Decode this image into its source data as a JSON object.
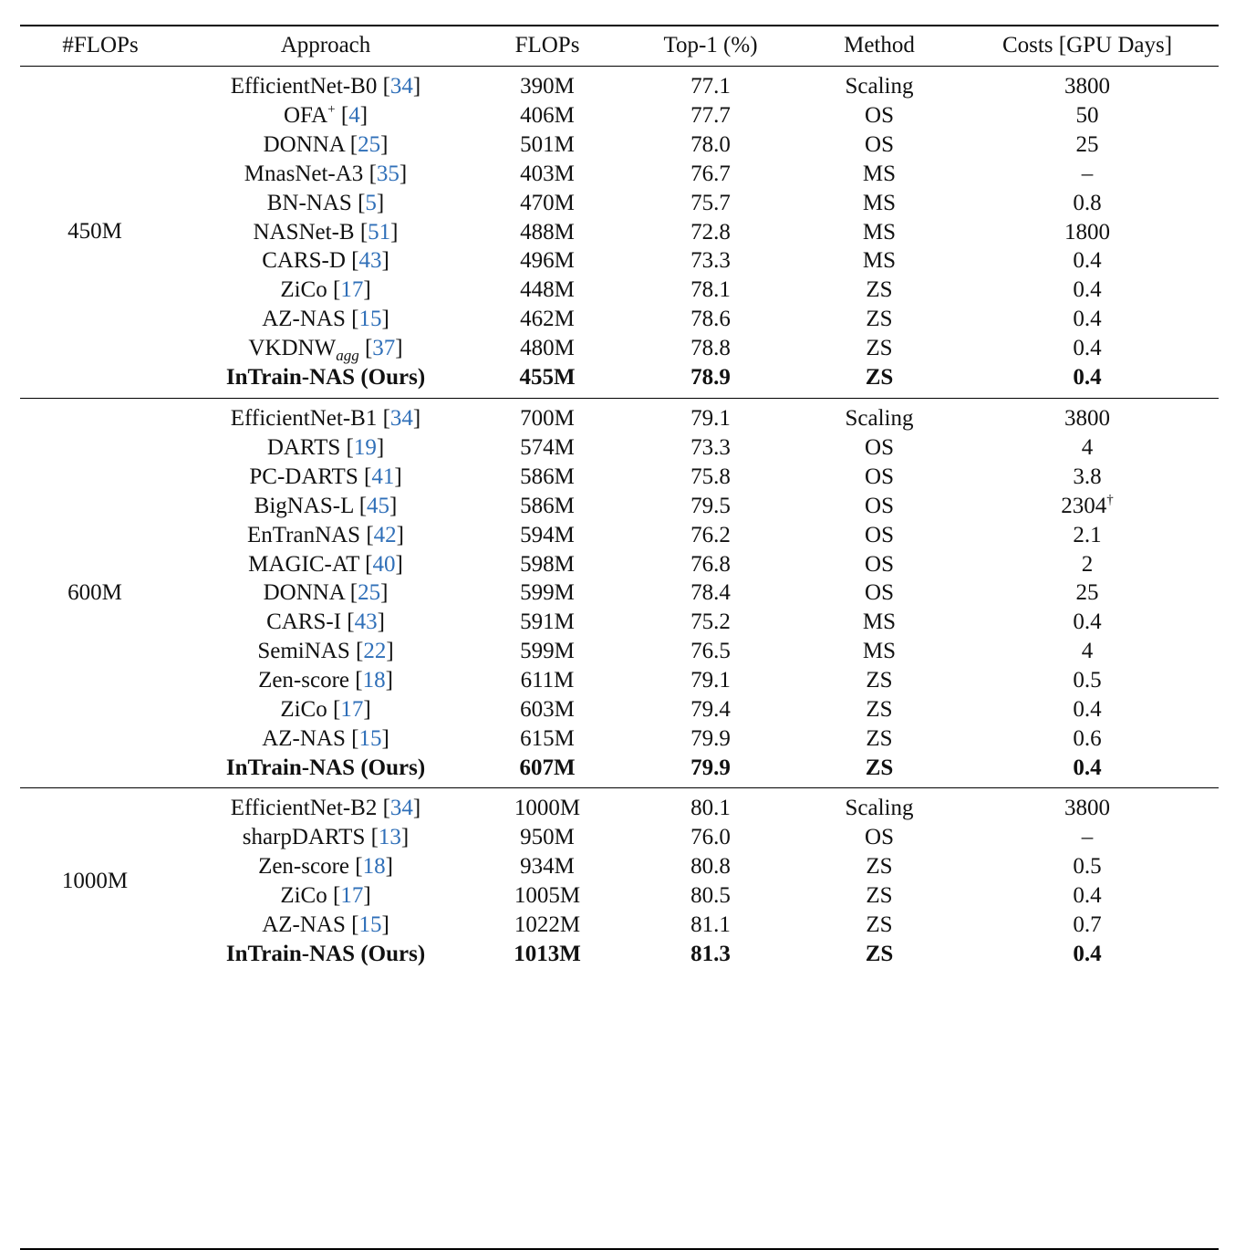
{
  "headers": {
    "flops_group": "#FLOPs",
    "approach": "Approach",
    "flops": "FLOPs",
    "top1": "Top-1 (%)",
    "method": "Method",
    "costs": "Costs [GPU Days]"
  },
  "groups": [
    {
      "label": "450M",
      "rows": [
        {
          "name": "EfficientNet-B0",
          "cite": "34",
          "flops": "390M",
          "top1": "77.1",
          "method": "Scaling",
          "cost": "3800"
        },
        {
          "name": "OFA",
          "sup": "+",
          "cite": "4",
          "flops": "406M",
          "top1": "77.7",
          "method": "OS",
          "cost": "50"
        },
        {
          "name": "DONNA",
          "cite": "25",
          "flops": "501M",
          "top1": "78.0",
          "method": "OS",
          "cost": "25"
        },
        {
          "name": "MnasNet-A3",
          "cite": "35",
          "flops": "403M",
          "top1": "76.7",
          "method": "MS",
          "cost": "–"
        },
        {
          "name": "BN-NAS",
          "cite": "5",
          "flops": "470M",
          "top1": "75.7",
          "method": "MS",
          "cost": "0.8"
        },
        {
          "name": "NASNet-B",
          "cite": "51",
          "flops": "488M",
          "top1": "72.8",
          "method": "MS",
          "cost": "1800"
        },
        {
          "name": "CARS-D",
          "cite": "43",
          "flops": "496M",
          "top1": "73.3",
          "method": "MS",
          "cost": "0.4"
        },
        {
          "name": "ZiCo",
          "cite": "17",
          "flops": "448M",
          "top1": "78.1",
          "method": "ZS",
          "cost": "0.4"
        },
        {
          "name": "AZ-NAS",
          "cite": "15",
          "flops": "462M",
          "top1": "78.6",
          "method": "ZS",
          "cost": "0.4"
        },
        {
          "name": "VKDNW",
          "sub": "agg",
          "cite": "37",
          "flops": "480M",
          "top1": "78.8",
          "method": "ZS",
          "cost": "0.4"
        },
        {
          "name": "InTrain-NAS (Ours)",
          "bold": true,
          "flops": "455M",
          "top1": "78.9",
          "method": "ZS",
          "cost": "0.4"
        }
      ]
    },
    {
      "label": "600M",
      "rows": [
        {
          "name": "EfficientNet-B1",
          "cite": "34",
          "flops": "700M",
          "top1": "79.1",
          "method": "Scaling",
          "cost": "3800"
        },
        {
          "name": "DARTS",
          "cite": "19",
          "flops": "574M",
          "top1": "73.3",
          "method": "OS",
          "cost": "4"
        },
        {
          "name": "PC-DARTS",
          "cite": "41",
          "flops": "586M",
          "top1": "75.8",
          "method": "OS",
          "cost": "3.8"
        },
        {
          "name": "BigNAS-L",
          "cite": "45",
          "flops": "586M",
          "top1": "79.5",
          "method": "OS",
          "cost": "2304",
          "cost_sup": "†"
        },
        {
          "name": "EnTranNAS",
          "cite": "42",
          "flops": "594M",
          "top1": "76.2",
          "method": "OS",
          "cost": "2.1"
        },
        {
          "name": "MAGIC-AT",
          "cite": "40",
          "flops": "598M",
          "top1": "76.8",
          "method": "OS",
          "cost": "2"
        },
        {
          "name": "DONNA",
          "cite": "25",
          "flops": "599M",
          "top1": "78.4",
          "method": "OS",
          "cost": "25"
        },
        {
          "name": "CARS-I",
          "cite": "43",
          "flops": "591M",
          "top1": "75.2",
          "method": "MS",
          "cost": "0.4"
        },
        {
          "name": "SemiNAS",
          "cite": "22",
          "flops": "599M",
          "top1": "76.5",
          "method": "MS",
          "cost": "4"
        },
        {
          "name": "Zen-score",
          "cite": "18",
          "flops": "611M",
          "top1": "79.1",
          "method": "ZS",
          "cost": "0.5"
        },
        {
          "name": "ZiCo",
          "cite": "17",
          "flops": "603M",
          "top1": "79.4",
          "method": "ZS",
          "cost": "0.4"
        },
        {
          "name": "AZ-NAS",
          "cite": "15",
          "flops": "615M",
          "top1": "79.9",
          "method": "ZS",
          "cost": "0.6"
        },
        {
          "name": "InTrain-NAS (Ours)",
          "bold": true,
          "flops": "607M",
          "top1": "79.9",
          "method": "ZS",
          "cost": "0.4"
        }
      ]
    },
    {
      "label": "1000M",
      "rows": [
        {
          "name": "EfficientNet-B2",
          "cite": "34",
          "flops": "1000M",
          "top1": "80.1",
          "method": "Scaling",
          "cost": "3800"
        },
        {
          "name": "sharpDARTS",
          "cite": "13",
          "flops": "950M",
          "top1": "76.0",
          "method": "OS",
          "cost": "–"
        },
        {
          "name": "Zen-score",
          "cite": "18",
          "flops": "934M",
          "top1": "80.8",
          "method": "ZS",
          "cost": "0.5"
        },
        {
          "name": "ZiCo",
          "cite": "17",
          "flops": "1005M",
          "top1": "80.5",
          "method": "ZS",
          "cost": "0.4"
        },
        {
          "name": "AZ-NAS",
          "cite": "15",
          "flops": "1022M",
          "top1": "81.1",
          "method": "ZS",
          "cost": "0.7"
        },
        {
          "name": "InTrain-NAS (Ours)",
          "bold": true,
          "flops": "1013M",
          "top1": "81.3",
          "method": "ZS",
          "cost": "0.4"
        }
      ]
    }
  ]
}
